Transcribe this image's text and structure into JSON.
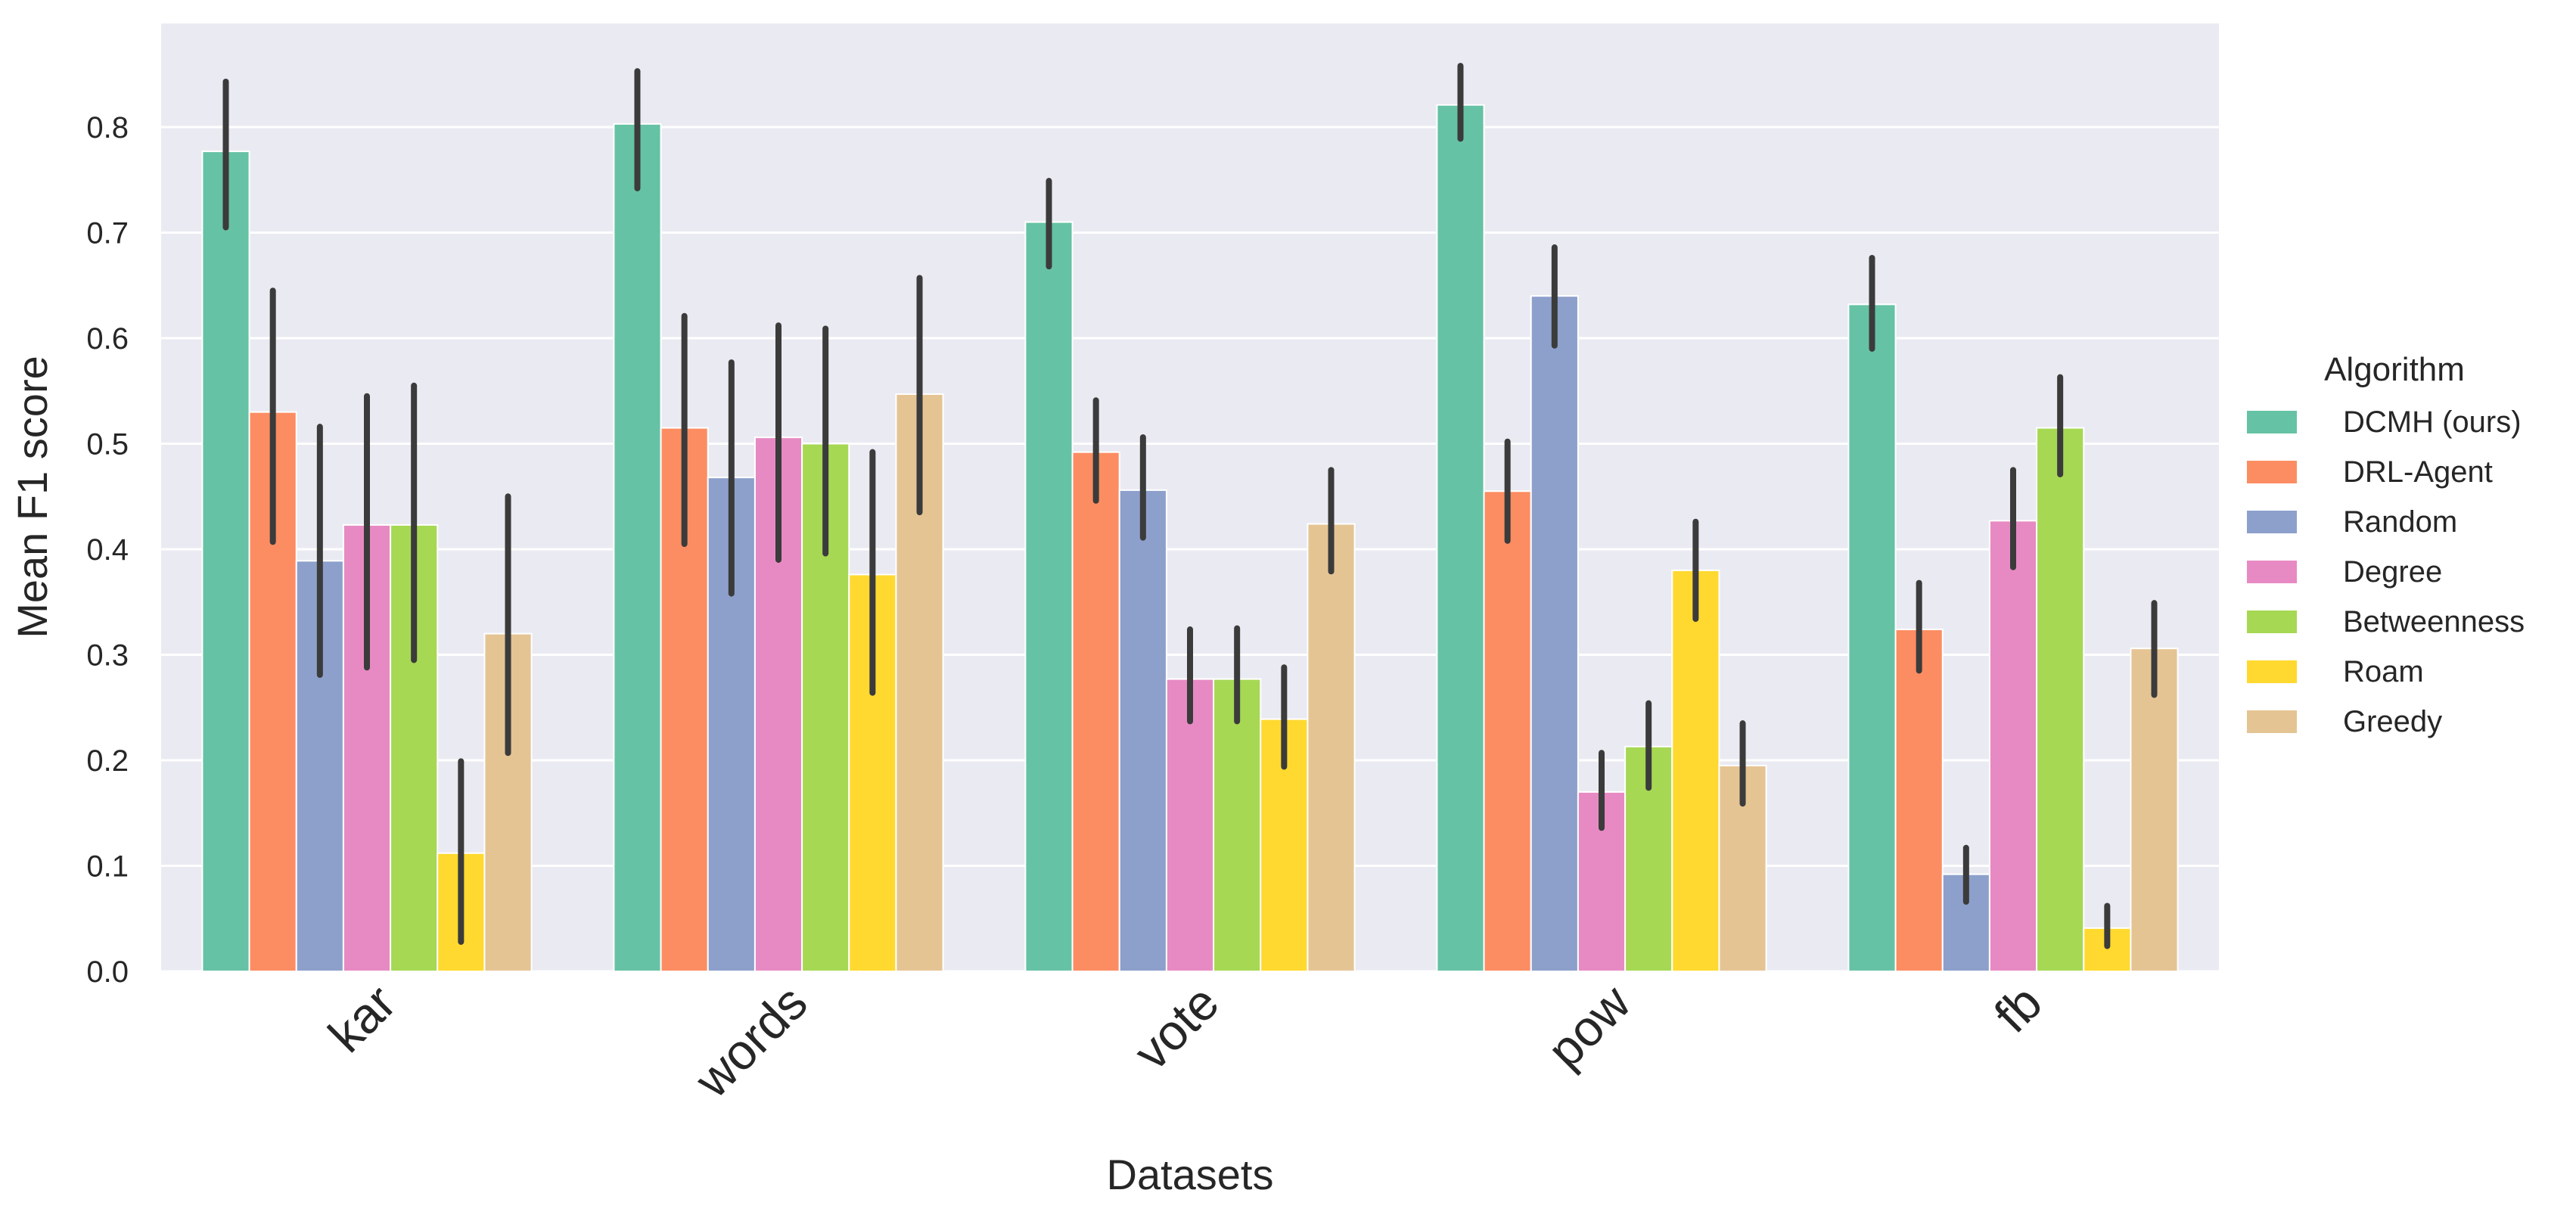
{
  "chart_data": {
    "type": "bar",
    "title": "",
    "xlabel": "Datasets",
    "ylabel": "Mean F1 score",
    "ylim": [
      0,
      0.9
    ],
    "yticks": [
      "0.0",
      "0.1",
      "0.2",
      "0.3",
      "0.4",
      "0.5",
      "0.6",
      "0.7",
      "0.8"
    ],
    "grid": true,
    "legend": {
      "title": "Algorithm",
      "placement": "right"
    },
    "categories": [
      "kar",
      "words",
      "vote",
      "pow",
      "fb"
    ],
    "series": [
      {
        "name": "DCMH (ours)",
        "color": "#66c2a5",
        "values": [
          0.777,
          0.803,
          0.71,
          0.821,
          0.632
        ],
        "ci": [
          [
            0.705,
            0.843
          ],
          [
            0.742,
            0.853
          ],
          [
            0.668,
            0.749
          ],
          [
            0.789,
            0.858
          ],
          [
            0.59,
            0.676
          ]
        ]
      },
      {
        "name": "DRL-Agent",
        "color": "#fc8d62",
        "values": [
          0.53,
          0.515,
          0.492,
          0.455,
          0.324
        ],
        "ci": [
          [
            0.407,
            0.645
          ],
          [
            0.405,
            0.621
          ],
          [
            0.446,
            0.541
          ],
          [
            0.408,
            0.502
          ],
          [
            0.285,
            0.368
          ]
        ]
      },
      {
        "name": "Random",
        "color": "#8da0cb",
        "values": [
          0.389,
          0.468,
          0.456,
          0.64,
          0.092
        ],
        "ci": [
          [
            0.281,
            0.516
          ],
          [
            0.358,
            0.577
          ],
          [
            0.411,
            0.506
          ],
          [
            0.593,
            0.686
          ],
          [
            0.066,
            0.117
          ]
        ]
      },
      {
        "name": "Degree",
        "color": "#e78ac3",
        "values": [
          0.423,
          0.506,
          0.277,
          0.17,
          0.427
        ],
        "ci": [
          [
            0.288,
            0.545
          ],
          [
            0.39,
            0.612
          ],
          [
            0.237,
            0.324
          ],
          [
            0.136,
            0.207
          ],
          [
            0.383,
            0.475
          ]
        ]
      },
      {
        "name": "Betweenness",
        "color": "#a6d854",
        "values": [
          0.423,
          0.5,
          0.277,
          0.213,
          0.515
        ],
        "ci": [
          [
            0.295,
            0.555
          ],
          [
            0.396,
            0.609
          ],
          [
            0.237,
            0.325
          ],
          [
            0.174,
            0.254
          ],
          [
            0.471,
            0.563
          ]
        ]
      },
      {
        "name": "Roam",
        "color": "#ffd92f",
        "values": [
          0.112,
          0.376,
          0.239,
          0.38,
          0.041
        ],
        "ci": [
          [
            0.028,
            0.199
          ],
          [
            0.264,
            0.492
          ],
          [
            0.194,
            0.288
          ],
          [
            0.334,
            0.426
          ],
          [
            0.024,
            0.062
          ]
        ]
      },
      {
        "name": "Greedy",
        "color": "#e5c494",
        "values": [
          0.32,
          0.547,
          0.424,
          0.195,
          0.306
        ],
        "ci": [
          [
            0.207,
            0.45
          ],
          [
            0.435,
            0.657
          ],
          [
            0.379,
            0.475
          ],
          [
            0.159,
            0.235
          ],
          [
            0.262,
            0.349
          ]
        ]
      }
    ],
    "colors": {
      "plot_bg": "#eaeaf2",
      "grid": "#ffffff",
      "errorbar": "#3b3b3b",
      "text": "#262626"
    }
  }
}
